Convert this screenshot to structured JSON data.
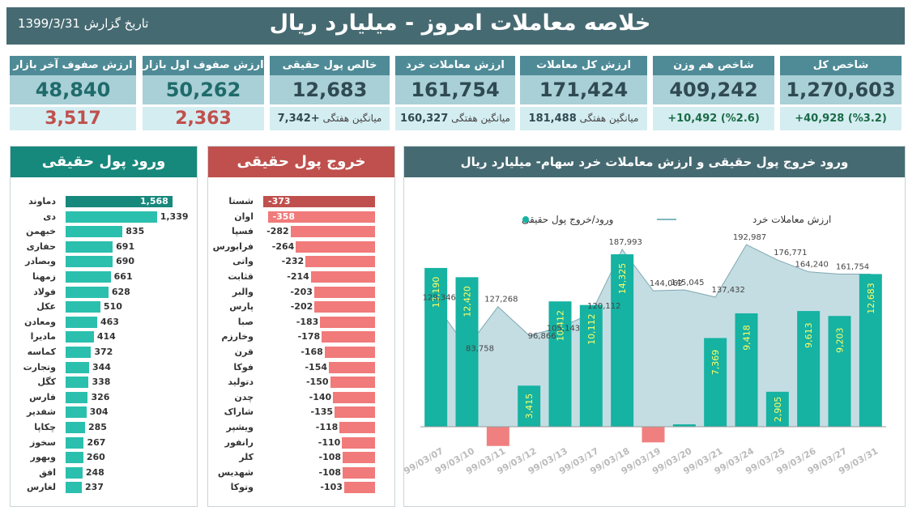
{
  "header": {
    "title": "خلاصه معاملات امروز - میلیارد ریال",
    "report_date": "تاریخ گزارش 1399/3/31"
  },
  "kpis": [
    {
      "name": "kpi-sell-queue",
      "label": "ارزش صفوف آخر بازار",
      "value": "48,840",
      "sub": "3,517",
      "subtype": "neg"
    },
    {
      "name": "kpi-buy-queue",
      "label": "ارزش صفوف اول بازار",
      "value": "50,262",
      "sub": "2,363",
      "subtype": "neg"
    },
    {
      "name": "kpi-net-flow",
      "label": "خالص پول حقیقی",
      "value": "12,683",
      "sub_label": "میانگین هفتگی",
      "sub": "+7,342",
      "subtype": "avg"
    },
    {
      "name": "kpi-retail-value",
      "label": "ارزش معاملات خرد",
      "value": "161,754",
      "sub_label": "میانگین هفتگی",
      "sub": "160,327",
      "subtype": "avg"
    },
    {
      "name": "kpi-total-value",
      "label": "ارزش کل معاملات",
      "value": "171,424",
      "sub_label": "میانگین هفتگی",
      "sub": "181,488",
      "subtype": "avg"
    },
    {
      "name": "kpi-equal-weight",
      "label": "شاخص هم وزن",
      "value": "409,242",
      "sub": "+10,492 (%2.6)",
      "subtype": "pos"
    },
    {
      "name": "kpi-total-index",
      "label": "شاخص کل",
      "value": "1,270,603",
      "sub": "+40,928 (%3.2)",
      "subtype": "pos"
    }
  ],
  "inflow": {
    "title": "ورود پول حقیقی",
    "color": "#2bbfae",
    "top_color": "#17887c",
    "items": [
      [
        "دماوند",
        1568
      ],
      [
        "دی",
        1339
      ],
      [
        "خبهمن",
        835
      ],
      [
        "حفاری",
        691
      ],
      [
        "وبصادر",
        690
      ],
      [
        "زمهنا",
        661
      ],
      [
        "فولاد",
        628
      ],
      [
        "عکل",
        510
      ],
      [
        "ومعادن",
        463
      ],
      [
        "ماديرا",
        414
      ],
      [
        "کماسه",
        372
      ],
      [
        "وتجارت",
        344
      ],
      [
        "کگل",
        338
      ],
      [
        "فارس",
        326
      ],
      [
        "شفدیر",
        304
      ],
      [
        "چکاپا",
        285
      ],
      [
        "سخوز",
        267
      ],
      [
        "وبهور",
        260
      ],
      [
        "افق",
        248
      ],
      [
        "لغارس",
        237
      ]
    ]
  },
  "outflow": {
    "title": "خروج پول حقیقی",
    "color": "#f17a7a",
    "top_color": "#c0504d",
    "items": [
      [
        "شستا",
        -373
      ],
      [
        "اوان",
        -358
      ],
      [
        "فسپا",
        -282
      ],
      [
        "فرابورس",
        -264
      ],
      [
        "واتی",
        -232
      ],
      [
        "قثابت",
        -214
      ],
      [
        "والبر",
        -203
      ],
      [
        "پارس",
        -202
      ],
      [
        "صبا",
        -183
      ],
      [
        "وخارزم",
        -178
      ],
      [
        "قرن",
        -168
      ],
      [
        "فوکا",
        -154
      ],
      [
        "دتولید",
        -150
      ],
      [
        "چدن",
        -140
      ],
      [
        "شاراک",
        -135
      ],
      [
        "ویشپر",
        -118
      ],
      [
        "رانفور",
        -110
      ],
      [
        "کلر",
        -108
      ],
      [
        "شهدیس",
        -108
      ],
      [
        "وتوکا",
        -103
      ]
    ]
  },
  "chart_data": {
    "type": "bar+area",
    "title": "ورود خروج پول حقیقی و ارزش معاملات خرد سهام- میلیارد ریال",
    "legend": {
      "area": "ارزش معاملات خرد",
      "bars": "ورود/خروج پول حقیقی"
    },
    "categories": [
      "99/03/07",
      "99/03/10",
      "99/03/11",
      "99/03/12",
      "99/03/13",
      "99/03/17",
      "99/03/18",
      "99/03/19",
      "99/03/20",
      "99/03/21",
      "99/03/24",
      "99/03/25",
      "99/03/26",
      "99/03/27",
      "99/03/31"
    ],
    "series": [
      {
        "name": "ورود/خروج پول حقیقی",
        "values": [
          13190,
          12420,
          -1600,
          3415,
          10412,
          10112,
          14325,
          -1300,
          200,
          7369,
          9418,
          2905,
          9613,
          9203,
          12683
        ],
        "labels": [
          "13,190",
          "12,420",
          "",
          "3,415",
          "10,412",
          "10,112",
          "14,325",
          "",
          "",
          "7,369",
          "9,418",
          "2,905",
          "9,613",
          "9,203",
          "12,683"
        ]
      },
      {
        "name": "ارزش معاملات خرد",
        "values": [
          129346,
          83758,
          127268,
          96866,
          105143,
          120112,
          187993,
          144062,
          145045,
          137432,
          192987,
          176771,
          164240,
          161754,
          161754
        ],
        "labels": [
          "129,346",
          "83,758",
          "127,268",
          "96,866",
          "105,143",
          "120,112",
          "187,993",
          "144,062",
          "145,045",
          "137,432",
          "192,987",
          "176,771",
          "164,240",
          "161,754",
          ""
        ]
      }
    ],
    "bar_ylim": [
      -2000,
      15000
    ],
    "area_ylim": [
      0,
      200000
    ]
  }
}
